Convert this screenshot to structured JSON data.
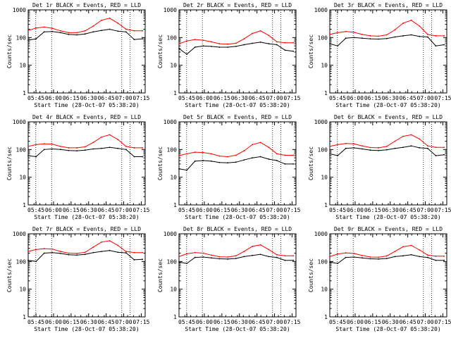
{
  "figure": {
    "x_tick_labels": [
      "05:45",
      "06:00",
      "06:15",
      "06:30",
      "06:45",
      "07:00",
      "07:15"
    ],
    "y_tick_labels": [
      "1",
      "10",
      "100",
      "1000"
    ],
    "y_scale": "log",
    "ylabel": "Counts/sec",
    "xlabel": "Start Time (28-Oct-07 05:38:20)",
    "xlim_minutes_after_05_38_20": [
      0,
      100
    ],
    "ylim": [
      1,
      1000
    ],
    "colors": {
      "events": "#000000",
      "lld": "#ff0000",
      "background": "#ffffff"
    }
  },
  "chart_data": [
    {
      "type": "line",
      "title": "Det 1r BLACK = Events, RED = LLD",
      "xlabel": "Start Time (28-Oct-07 05:38:20)",
      "ylabel": "Counts/sec",
      "y_scale": "log",
      "x": [
        "05:38",
        "05:45",
        "05:52",
        "05:59",
        "06:06",
        "06:13",
        "06:20",
        "06:27",
        "06:34",
        "06:41",
        "06:48",
        "06:55",
        "07:02",
        "07:09",
        "07:16"
      ],
      "series": [
        {
          "name": "Events",
          "color": "#000000",
          "values": [
            80,
            90,
            160,
            165,
            150,
            130,
            125,
            135,
            160,
            180,
            200,
            170,
            160,
            85,
            90
          ]
        },
        {
          "name": "LLD",
          "color": "#ff0000",
          "values": [
            180,
            220,
            240,
            215,
            175,
            150,
            150,
            175,
            260,
            420,
            500,
            330,
            200,
            175,
            175
          ]
        }
      ]
    },
    {
      "type": "line",
      "title": "Det 2r BLACK = Events, RED = LLD",
      "xlabel": "Start Time (28-Oct-07 05:38:20)",
      "ylabel": "Counts/sec",
      "y_scale": "log",
      "x": [
        "05:38",
        "05:45",
        "05:52",
        "05:59",
        "06:06",
        "06:13",
        "06:20",
        "06:27",
        "06:34",
        "06:41",
        "06:48",
        "06:55",
        "07:02",
        "07:09",
        "07:16"
      ],
      "series": [
        {
          "name": "Events",
          "color": "#000000",
          "values": [
            40,
            25,
            45,
            50,
            48,
            45,
            45,
            48,
            55,
            62,
            68,
            60,
            55,
            35,
            32
          ]
        },
        {
          "name": "LLD",
          "color": "#ff0000",
          "values": [
            60,
            75,
            85,
            80,
            70,
            60,
            58,
            62,
            90,
            140,
            175,
            120,
            70,
            65,
            65
          ]
        }
      ]
    },
    {
      "type": "line",
      "title": "Det 3r BLACK = Events, RED = LLD",
      "xlabel": "Start Time (28-Oct-07 05:38:20)",
      "ylabel": "Counts/sec",
      "y_scale": "log",
      "x": [
        "05:38",
        "05:45",
        "05:52",
        "05:59",
        "06:06",
        "06:13",
        "06:20",
        "06:27",
        "06:34",
        "06:41",
        "06:48",
        "06:55",
        "07:02",
        "07:09",
        "07:16"
      ],
      "series": [
        {
          "name": "Events",
          "color": "#000000",
          "values": [
            60,
            50,
            95,
            100,
            95,
            90,
            88,
            92,
            105,
            115,
            125,
            110,
            105,
            50,
            55
          ]
        },
        {
          "name": "LLD",
          "color": "#ff0000",
          "values": [
            130,
            150,
            165,
            155,
            130,
            115,
            112,
            125,
            190,
            330,
            420,
            260,
            130,
            115,
            115
          ]
        }
      ]
    },
    {
      "type": "line",
      "title": "Det 4r BLACK = Events, RED = LLD",
      "xlabel": "Start Time (28-Oct-07 05:38:20)",
      "ylabel": "Counts/sec",
      "y_scale": "log",
      "x": [
        "05:38",
        "05:45",
        "05:52",
        "05:59",
        "06:06",
        "06:13",
        "06:20",
        "06:27",
        "06:34",
        "06:41",
        "06:48",
        "06:55",
        "07:02",
        "07:09",
        "07:16"
      ],
      "series": [
        {
          "name": "Events",
          "color": "#000000",
          "values": [
            60,
            55,
            100,
            105,
            100,
            92,
            90,
            95,
            105,
            110,
            120,
            110,
            100,
            55,
            55
          ]
        },
        {
          "name": "LLD",
          "color": "#ff0000",
          "values": [
            130,
            150,
            160,
            155,
            130,
            115,
            115,
            125,
            180,
            280,
            340,
            230,
            130,
            115,
            115
          ]
        }
      ]
    },
    {
      "type": "line",
      "title": "Det 5r BLACK = Events, RED = LLD",
      "xlabel": "Start Time (28-Oct-07 05:38:20)",
      "ylabel": "Counts/sec",
      "y_scale": "log",
      "x": [
        "05:38",
        "05:45",
        "05:52",
        "05:59",
        "06:06",
        "06:13",
        "06:20",
        "06:27",
        "06:34",
        "06:41",
        "06:48",
        "06:55",
        "07:02",
        "07:09",
        "07:16"
      ],
      "series": [
        {
          "name": "Events",
          "color": "#000000",
          "values": [
            20,
            18,
            38,
            40,
            38,
            34,
            33,
            35,
            42,
            50,
            55,
            45,
            40,
            30,
            30
          ]
        },
        {
          "name": "LLD",
          "color": "#ff0000",
          "values": [
            60,
            70,
            80,
            78,
            70,
            58,
            55,
            62,
            90,
            150,
            180,
            120,
            70,
            62,
            62
          ]
        }
      ]
    },
    {
      "type": "line",
      "title": "Det 6r BLACK = Events, RED = LLD",
      "xlabel": "Start Time (28-Oct-07 05:38:20)",
      "ylabel": "Counts/sec",
      "y_scale": "log",
      "x": [
        "05:38",
        "05:45",
        "05:52",
        "05:59",
        "06:06",
        "06:13",
        "06:20",
        "06:27",
        "06:34",
        "06:41",
        "06:48",
        "06:55",
        "07:02",
        "07:09",
        "07:16"
      ],
      "series": [
        {
          "name": "Events",
          "color": "#000000",
          "values": [
            70,
            60,
            110,
            115,
            105,
            95,
            92,
            98,
            110,
            120,
            135,
            115,
            110,
            60,
            65
          ]
        },
        {
          "name": "LLD",
          "color": "#ff0000",
          "values": [
            130,
            150,
            165,
            160,
            135,
            118,
            115,
            130,
            200,
            300,
            340,
            240,
            135,
            120,
            120
          ]
        }
      ]
    },
    {
      "type": "line",
      "title": "Det 7r BLACK = Events, RED = LLD",
      "xlabel": "Start Time (28-Oct-07 05:38:20)",
      "ylabel": "Counts/sec",
      "y_scale": "log",
      "x": [
        "05:38",
        "05:45",
        "05:52",
        "05:59",
        "06:06",
        "06:13",
        "06:20",
        "06:27",
        "06:34",
        "06:41",
        "06:48",
        "06:55",
        "07:02",
        "07:09",
        "07:16"
      ],
      "series": [
        {
          "name": "Events",
          "color": "#000000",
          "values": [
            110,
            100,
            200,
            210,
            195,
            175,
            170,
            180,
            210,
            230,
            250,
            215,
            205,
            115,
            120
          ]
        },
        {
          "name": "LLD",
          "color": "#ff0000",
          "values": [
            230,
            270,
            290,
            280,
            230,
            200,
            195,
            215,
            330,
            500,
            560,
            380,
            230,
            210,
            210
          ]
        }
      ]
    },
    {
      "type": "line",
      "title": "Det 8r BLACK = Events, RED = LLD",
      "xlabel": "Start Time (28-Oct-07 05:38:20)",
      "ylabel": "Counts/sec",
      "y_scale": "log",
      "x": [
        "05:38",
        "05:45",
        "05:52",
        "05:59",
        "06:06",
        "06:13",
        "06:20",
        "06:27",
        "06:34",
        "06:41",
        "06:48",
        "06:55",
        "07:02",
        "07:09",
        "07:16"
      ],
      "series": [
        {
          "name": "Events",
          "color": "#000000",
          "values": [
            95,
            85,
            140,
            145,
            135,
            125,
            122,
            128,
            150,
            165,
            180,
            150,
            140,
            110,
            110
          ]
        },
        {
          "name": "LLD",
          "color": "#ff0000",
          "values": [
            150,
            190,
            210,
            200,
            170,
            148,
            145,
            160,
            230,
            350,
            400,
            270,
            175,
            160,
            160
          ]
        }
      ]
    },
    {
      "type": "line",
      "title": "Det 9r BLACK = Events, RED = LLD",
      "xlabel": "Start Time (28-Oct-07 05:38:20)",
      "ylabel": "Counts/sec",
      "y_scale": "log",
      "x": [
        "05:38",
        "05:45",
        "05:52",
        "05:59",
        "06:06",
        "06:13",
        "06:20",
        "06:27",
        "06:34",
        "06:41",
        "06:48",
        "06:55",
        "07:02",
        "07:09",
        "07:16"
      ],
      "series": [
        {
          "name": "Events",
          "color": "#000000",
          "values": [
            95,
            85,
            140,
            145,
            135,
            125,
            122,
            128,
            150,
            160,
            175,
            150,
            140,
            110,
            110
          ]
        },
        {
          "name": "LLD",
          "color": "#ff0000",
          "values": [
            150,
            185,
            205,
            195,
            165,
            145,
            142,
            158,
            230,
            340,
            380,
            260,
            170,
            155,
            155
          ]
        }
      ]
    }
  ]
}
